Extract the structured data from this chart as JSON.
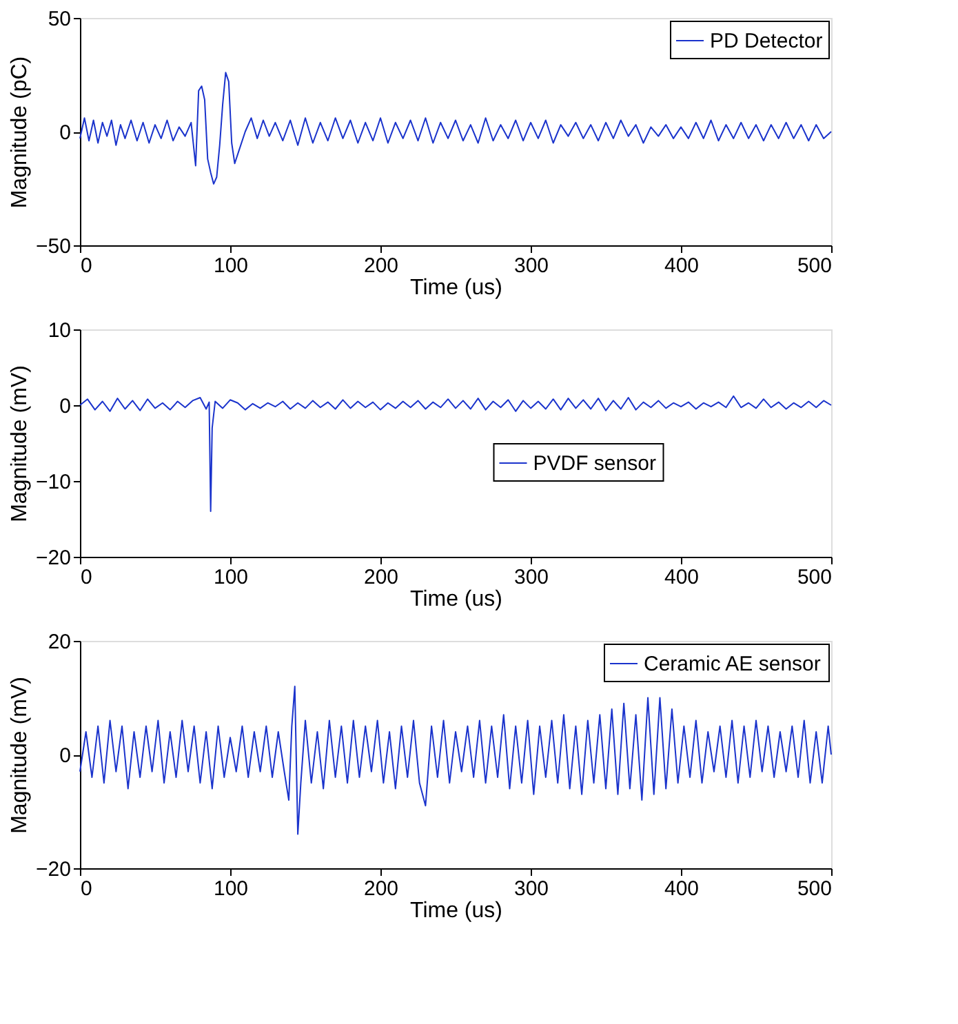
{
  "chart_data": [
    {
      "type": "line",
      "xlabel": "Time (us)",
      "ylabel": "Magnitude (pC)",
      "xlim": [
        0,
        500
      ],
      "xticks": [
        0,
        100,
        200,
        300,
        400,
        500
      ],
      "ylim": [
        -50,
        50
      ],
      "yticks": [
        -50,
        0,
        50
      ],
      "grid": false,
      "legend": "top right",
      "series": [
        {
          "name": "PD Detector",
          "color": "#1a33cc",
          "x": [
            0,
            3,
            6,
            9,
            12,
            15,
            18,
            21,
            24,
            27,
            30,
            34,
            38,
            42,
            46,
            50,
            54,
            58,
            62,
            66,
            70,
            74,
            77,
            79,
            81,
            83,
            85,
            87,
            89,
            91,
            93,
            95,
            97,
            99,
            101,
            103,
            106,
            110,
            114,
            118,
            122,
            126,
            130,
            135,
            140,
            145,
            150,
            155,
            160,
            165,
            170,
            175,
            180,
            185,
            190,
            195,
            200,
            205,
            210,
            215,
            220,
            225,
            230,
            235,
            240,
            245,
            250,
            255,
            260,
            265,
            270,
            275,
            280,
            285,
            290,
            295,
            300,
            305,
            310,
            315,
            320,
            325,
            330,
            335,
            340,
            345,
            350,
            355,
            360,
            365,
            370,
            375,
            380,
            385,
            390,
            395,
            400,
            405,
            410,
            415,
            420,
            425,
            430,
            435,
            440,
            445,
            450,
            455,
            460,
            465,
            470,
            475,
            480,
            485,
            490,
            495,
            500
          ],
          "values": [
            -3,
            6,
            -4,
            5,
            -5,
            4,
            -2,
            5,
            -6,
            3,
            -3,
            5,
            -4,
            4,
            -5,
            3,
            -3,
            5,
            -4,
            2,
            -2,
            4,
            -15,
            18,
            20,
            14,
            -12,
            -18,
            -23,
            -20,
            -6,
            12,
            26,
            22,
            -5,
            -14,
            -8,
            0,
            6,
            -3,
            5,
            -2,
            4,
            -4,
            5,
            -6,
            6,
            -5,
            4,
            -4,
            6,
            -3,
            5,
            -5,
            4,
            -4,
            6,
            -5,
            4,
            -3,
            5,
            -4,
            6,
            -5,
            4,
            -3,
            5,
            -4,
            3,
            -5,
            6,
            -4,
            3,
            -3,
            5,
            -4,
            4,
            -3,
            5,
            -5,
            3,
            -2,
            4,
            -3,
            3,
            -4,
            4,
            -3,
            5,
            -2,
            3,
            -5,
            2,
            -2,
            3,
            -3,
            2,
            -3,
            4,
            -3,
            5,
            -4,
            3,
            -3,
            4,
            -3,
            3,
            -4,
            3,
            -3,
            4,
            -3,
            3,
            -4,
            3,
            -3,
            0
          ]
        }
      ]
    },
    {
      "type": "line",
      "xlabel": "Time (us)",
      "ylabel": "Magnitude (mV)",
      "xlim": [
        0,
        500
      ],
      "xticks": [
        0,
        100,
        200,
        300,
        400,
        500
      ],
      "ylim": [
        -20,
        10
      ],
      "yticks": [
        -20,
        -10,
        0,
        10
      ],
      "grid": false,
      "legend": "right",
      "series": [
        {
          "name": "PVDF sensor",
          "color": "#1a33cc",
          "x": [
            0,
            5,
            10,
            15,
            20,
            25,
            30,
            35,
            40,
            45,
            50,
            55,
            60,
            65,
            70,
            75,
            80,
            84,
            86,
            87,
            88,
            90,
            95,
            100,
            105,
            110,
            115,
            120,
            125,
            130,
            135,
            140,
            145,
            150,
            155,
            160,
            165,
            170,
            175,
            180,
            185,
            190,
            195,
            200,
            205,
            210,
            215,
            220,
            225,
            230,
            235,
            240,
            245,
            250,
            255,
            260,
            265,
            270,
            275,
            280,
            285,
            290,
            295,
            300,
            305,
            310,
            315,
            320,
            325,
            330,
            335,
            340,
            345,
            350,
            355,
            360,
            365,
            370,
            375,
            380,
            385,
            390,
            395,
            400,
            405,
            410,
            415,
            420,
            425,
            430,
            435,
            440,
            445,
            450,
            455,
            460,
            465,
            470,
            475,
            480,
            485,
            490,
            495,
            500
          ],
          "values": [
            0,
            0.8,
            -0.6,
            0.5,
            -0.8,
            0.9,
            -0.5,
            0.6,
            -0.7,
            0.8,
            -0.4,
            0.3,
            -0.6,
            0.5,
            -0.3,
            0.6,
            1,
            -0.5,
            0.4,
            -14,
            -3,
            0.5,
            -0.4,
            0.7,
            0.3,
            -0.6,
            0.2,
            -0.4,
            0.3,
            -0.2,
            0.5,
            -0.5,
            0.3,
            -0.4,
            0.6,
            -0.3,
            0.4,
            -0.5,
            0.7,
            -0.4,
            0.5,
            -0.3,
            0.4,
            -0.6,
            0.3,
            -0.4,
            0.5,
            -0.3,
            0.6,
            -0.5,
            0.4,
            -0.3,
            0.8,
            -0.4,
            0.6,
            -0.5,
            0.9,
            -0.6,
            0.5,
            -0.3,
            0.7,
            -0.8,
            0.6,
            -0.4,
            0.5,
            -0.5,
            0.8,
            -0.6,
            0.9,
            -0.4,
            0.7,
            -0.5,
            0.9,
            -0.7,
            0.6,
            -0.5,
            1,
            -0.6,
            0.4,
            -0.3,
            0.6,
            -0.4,
            0.3,
            -0.2,
            0.4,
            -0.5,
            0.3,
            -0.2,
            0.4,
            -0.3,
            1.2,
            -0.3,
            0.3,
            -0.4,
            0.8,
            -0.3,
            0.4,
            -0.5,
            0.3,
            -0.3,
            0.5,
            -0.3,
            0.6,
            0
          ]
        }
      ]
    },
    {
      "type": "line",
      "xlabel": "Time (us)",
      "ylabel": "Magnitude (mV)",
      "xlim": [
        0,
        500
      ],
      "xticks": [
        0,
        100,
        200,
        300,
        400,
        500
      ],
      "ylim": [
        -20,
        20
      ],
      "yticks": [
        -20,
        0,
        20
      ],
      "grid": false,
      "legend": "top right",
      "series": [
        {
          "name": "Ceramic AE sensor",
          "color": "#1a33cc",
          "x": [
            0,
            4,
            8,
            12,
            16,
            20,
            24,
            28,
            32,
            36,
            40,
            44,
            48,
            52,
            56,
            60,
            64,
            68,
            72,
            76,
            80,
            84,
            88,
            92,
            96,
            100,
            104,
            108,
            112,
            116,
            120,
            124,
            128,
            132,
            136,
            139,
            141,
            143,
            145,
            147,
            150,
            154,
            158,
            162,
            166,
            170,
            174,
            178,
            182,
            186,
            190,
            194,
            198,
            202,
            206,
            210,
            214,
            218,
            222,
            226,
            230,
            234,
            238,
            242,
            246,
            250,
            254,
            258,
            262,
            266,
            270,
            274,
            278,
            282,
            286,
            290,
            294,
            298,
            302,
            306,
            310,
            314,
            318,
            322,
            326,
            330,
            334,
            338,
            342,
            346,
            350,
            354,
            358,
            362,
            366,
            370,
            374,
            378,
            382,
            386,
            390,
            394,
            398,
            402,
            406,
            410,
            414,
            418,
            422,
            426,
            430,
            434,
            438,
            442,
            446,
            450,
            454,
            458,
            462,
            466,
            470,
            474,
            478,
            482,
            486,
            490,
            494,
            498,
            500
          ],
          "values": [
            -3,
            4,
            -4,
            5,
            -5,
            6,
            -3,
            5,
            -6,
            4,
            -4,
            5,
            -3,
            6,
            -5,
            4,
            -4,
            6,
            -3,
            5,
            -5,
            4,
            -6,
            5,
            -4,
            3,
            -3,
            5,
            -4,
            4,
            -3,
            5,
            -4,
            4,
            -3,
            -8,
            5,
            12,
            -14,
            -5,
            6,
            -5,
            4,
            -6,
            6,
            -4,
            5,
            -5,
            6,
            -4,
            5,
            -3,
            6,
            -5,
            4,
            -6,
            5,
            -4,
            6,
            -5,
            -9,
            5,
            -4,
            6,
            -5,
            4,
            -3,
            5,
            -4,
            6,
            -5,
            5,
            -4,
            7,
            -6,
            5,
            -5,
            6,
            -7,
            5,
            -4,
            6,
            -5,
            7,
            -6,
            5,
            -7,
            6,
            -5,
            7,
            -6,
            8,
            -7,
            9,
            -6,
            7,
            -8,
            10,
            -7,
            10,
            -6,
            8,
            -5,
            5,
            -4,
            6,
            -5,
            4,
            -3,
            5,
            -4,
            6,
            -5,
            5,
            -4,
            6,
            -3,
            5,
            -4,
            4,
            -3,
            5,
            -4,
            6,
            -5,
            4,
            -5,
            5,
            0
          ]
        }
      ]
    }
  ]
}
